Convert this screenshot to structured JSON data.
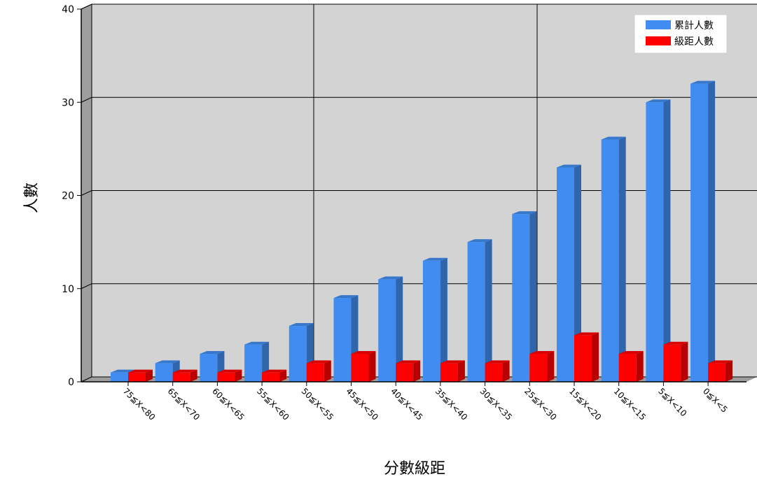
{
  "chart_data": {
    "type": "bar",
    "style": "3d",
    "xlabel": "分數級距",
    "ylabel": "人數",
    "ylim": [
      0,
      40
    ],
    "yticks": [
      0,
      10,
      20,
      30,
      40
    ],
    "grid": true,
    "legend_position": "top-right",
    "categories": [
      "75≦X<80",
      "65≦X<70",
      "60≦X<65",
      "55≦X<60",
      "50≦X<55",
      "45≦X<50",
      "40≦X<45",
      "35≦X<40",
      "30≦X<35",
      "25≦X<30",
      "15≦X<20",
      "10≦X<15",
      "5≦X<10",
      "0≦X<5"
    ],
    "series": [
      {
        "name": "累計人數",
        "color": "#418CF0",
        "values": [
          1,
          2,
          3,
          4,
          6,
          9,
          11,
          13,
          15,
          18,
          23,
          26,
          30,
          32
        ]
      },
      {
        "name": "級距人數",
        "color": "#FF0000",
        "values": [
          1,
          1,
          1,
          1,
          2,
          3,
          2,
          2,
          2,
          3,
          5,
          3,
          4,
          2
        ]
      }
    ]
  }
}
